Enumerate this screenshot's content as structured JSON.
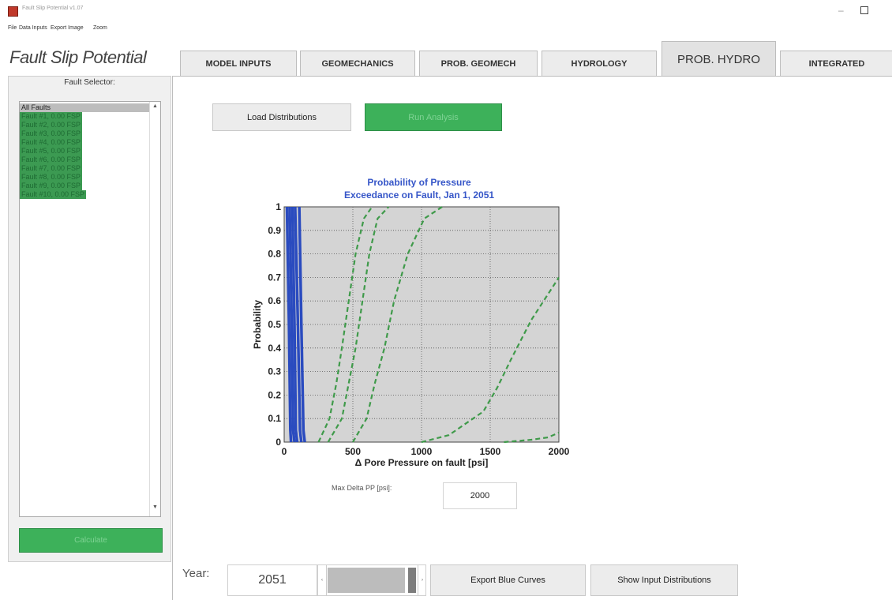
{
  "window": {
    "title": "Fault Slip Potential v1.07",
    "minimize_glyph": "–",
    "close_glyph": "×"
  },
  "menu": [
    "File",
    "Data Inputs",
    "Export Image",
    "Zoom"
  ],
  "app_title": "Fault Slip Potential",
  "left_panel": {
    "selector_label": "Fault Selector:",
    "faults": [
      "All Faults",
      "Fault #1, 0.00 FSP",
      "Fault #2, 0.00 FSP",
      "Fault #3, 0.00 FSP",
      "Fault #4, 0.00 FSP",
      "Fault #5, 0.00 FSP",
      "Fault #6, 0.00 FSP",
      "Fault #7, 0.00 FSP",
      "Fault #8, 0.00 FSP",
      "Fault #9, 0.00 FSP",
      "Fault #10, 0.00 FSP"
    ],
    "scroll_up_glyph": "▲",
    "scroll_down_glyph": "▼",
    "calculate_label": "Calculate"
  },
  "tabs": [
    {
      "label": "MODEL INPUTS",
      "active": false
    },
    {
      "label": "GEOMECHANICS",
      "active": false
    },
    {
      "label": "PROB. GEOMECH",
      "active": false
    },
    {
      "label": "HYDROLOGY",
      "active": false
    },
    {
      "label": "PROB. HYDRO",
      "active": true
    },
    {
      "label": "INTEGRATED",
      "active": false
    }
  ],
  "buttons": {
    "load_distributions": "Load Distributions",
    "run_analysis": "Run Analysis",
    "export_blue_curves": "Export Blue Curves",
    "show_input_distributions": "Show Input Distributions"
  },
  "max_delta": {
    "label": "Max Delta PP [psi]:",
    "value": "2000"
  },
  "year": {
    "label": "Year:",
    "value": "2051",
    "slider_fraction": 1.0,
    "left_arrow": "‹",
    "right_arrow": "›"
  },
  "colors": {
    "accent_green": "#3db15a",
    "blue_curve": "#2a4bbf",
    "green_curve": "#3f9a4a",
    "title_blue": "#3656c8",
    "plot_bg": "#d4d4d4"
  },
  "chart_data": {
    "type": "line",
    "title": [
      "Probability of Pressure",
      "Exceedance on Fault, Jan 1, 2051"
    ],
    "xlabel": "Δ Pore Pressure on fault [psi]",
    "ylabel": "Probability",
    "xlim": [
      0,
      2000
    ],
    "ylim": [
      0,
      1
    ],
    "x_ticks": [
      0,
      500,
      1000,
      1500,
      2000
    ],
    "y_ticks": [
      0,
      0.1,
      0.2,
      0.3,
      0.4,
      0.5,
      0.6,
      0.7,
      0.8,
      0.9,
      1
    ],
    "y_tick_labels": [
      "0",
      "0.1",
      "0.2",
      "0.3",
      "0.4",
      "0.5",
      "0.6",
      "0.7",
      "0.8",
      "0.9",
      "1"
    ],
    "grid": true,
    "blue_series": [
      {
        "x": [
          20,
          35,
          45,
          50
        ],
        "y": [
          1,
          0.5,
          0.05,
          0
        ]
      },
      {
        "x": [
          40,
          55,
          65,
          75
        ],
        "y": [
          1,
          0.5,
          0.05,
          0
        ]
      },
      {
        "x": [
          60,
          75,
          85,
          95
        ],
        "y": [
          1,
          0.5,
          0.05,
          0
        ]
      },
      {
        "x": [
          80,
          100,
          115,
          125
        ],
        "y": [
          1,
          0.5,
          0.05,
          0
        ]
      },
      {
        "x": [
          110,
          125,
          140,
          150
        ],
        "y": [
          1,
          0.5,
          0.05,
          0
        ]
      }
    ],
    "green_series": [
      {
        "x": [
          250,
          330,
          380,
          420,
          470,
          520,
          580,
          640
        ],
        "y": [
          0,
          0.1,
          0.25,
          0.4,
          0.6,
          0.8,
          0.95,
          1
        ]
      },
      {
        "x": [
          320,
          420,
          470,
          520,
          570,
          620,
          680,
          760
        ],
        "y": [
          0,
          0.1,
          0.25,
          0.4,
          0.6,
          0.8,
          0.95,
          1
        ]
      },
      {
        "x": [
          500,
          600,
          660,
          730,
          800,
          900,
          1020,
          1150
        ],
        "y": [
          0,
          0.1,
          0.25,
          0.4,
          0.6,
          0.8,
          0.95,
          1
        ]
      },
      {
        "x": [
          1000,
          1200,
          1450,
          1550,
          1650,
          1800,
          2000
        ],
        "y": [
          0,
          0.03,
          0.13,
          0.23,
          0.35,
          0.52,
          0.7
        ]
      },
      {
        "x": [
          1600,
          1800,
          1920,
          2000
        ],
        "y": [
          0,
          0.01,
          0.02,
          0.04
        ]
      }
    ]
  }
}
